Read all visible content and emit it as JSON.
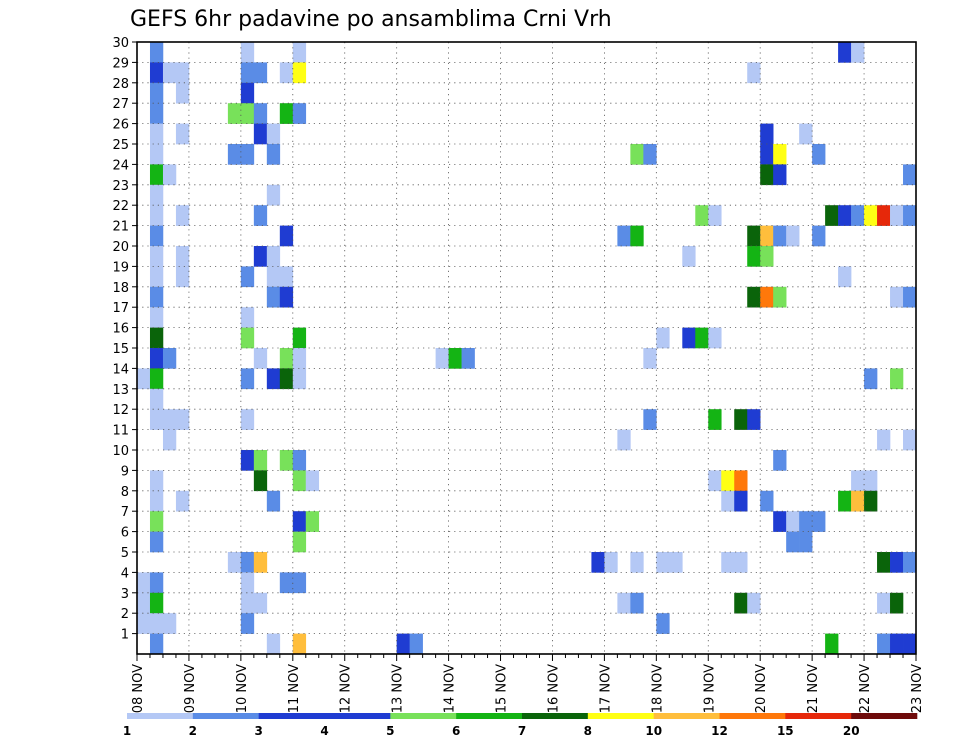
{
  "chart_data": {
    "type": "heatmap",
    "title": "GEFS 6hr padavine po ansamblima Crni Vrh",
    "xlabel": "",
    "ylabel": "",
    "x_tick_labels": [
      "08 NOV",
      "09 NOV",
      "10 NOV",
      "11 NOV",
      "12 NOV",
      "13 NOV",
      "14 NOV",
      "15 NOV",
      "16 NOV",
      "17 NOV",
      "18 NOV",
      "19 NOV",
      "20 NOV",
      "21 NOV",
      "22 NOV",
      "23 NOV"
    ],
    "y_tick_labels": [
      "1",
      "2",
      "3",
      "4",
      "5",
      "6",
      "7",
      "8",
      "9",
      "10",
      "11",
      "12",
      "13",
      "14",
      "15",
      "16",
      "17",
      "18",
      "19",
      "20",
      "21",
      "22",
      "23",
      "24",
      "25",
      "26",
      "27",
      "28",
      "29",
      "30"
    ],
    "xlim_steps": [
      0,
      60
    ],
    "ylim": [
      0,
      30
    ],
    "steps_per_day": 4,
    "members": 30,
    "grid": true,
    "legend": {
      "placement": "bottom",
      "levels": [
        "1",
        "2",
        "3",
        "4",
        "5",
        "6",
        "7",
        "8",
        "10",
        "12",
        "15",
        "20"
      ],
      "colors": [
        "#b4c8f5",
        "#5a8ce6",
        "#1f3cd2",
        "#1f3cd2",
        "#78e15a",
        "#14b414",
        "#0a640a",
        "#ffff14",
        "#ffbe3c",
        "#ff780a",
        "#e6280a",
        "#6e0a0a"
      ]
    },
    "color_scale": {
      "L1": "#b4c8f5",
      "L2": "#5a8ce6",
      "L3": "#1f3cd2",
      "L4": "#78e15a",
      "L5": "#14b414",
      "L6": "#0a640a",
      "L7": "#ffff14",
      "L8": "#ffbe3c",
      "L9": "#ff780a",
      "L10": "#e6280a"
    },
    "cells_format": "[step_index, member_row, level]",
    "cells": [
      [
        1,
        30,
        2
      ],
      [
        8,
        30,
        1
      ],
      [
        12,
        30,
        1
      ],
      [
        54,
        30,
        3
      ],
      [
        55,
        30,
        1
      ],
      [
        1,
        29,
        3
      ],
      [
        2,
        29,
        1
      ],
      [
        3,
        29,
        1
      ],
      [
        8,
        29,
        2
      ],
      [
        9,
        29,
        2
      ],
      [
        11,
        29,
        1
      ],
      [
        12,
        29,
        7
      ],
      [
        47,
        29,
        1
      ],
      [
        1,
        28,
        2
      ],
      [
        3,
        28,
        1
      ],
      [
        8,
        28,
        3
      ],
      [
        1,
        27,
        2
      ],
      [
        7,
        27,
        4
      ],
      [
        8,
        27,
        4
      ],
      [
        9,
        27,
        2
      ],
      [
        11,
        27,
        5
      ],
      [
        12,
        27,
        2
      ],
      [
        1,
        26,
        1
      ],
      [
        3,
        26,
        1
      ],
      [
        9,
        26,
        3
      ],
      [
        10,
        26,
        1
      ],
      [
        48,
        26,
        3
      ],
      [
        51,
        26,
        1
      ],
      [
        1,
        25,
        1
      ],
      [
        7,
        25,
        2
      ],
      [
        8,
        25,
        2
      ],
      [
        10,
        25,
        2
      ],
      [
        38,
        25,
        4
      ],
      [
        39,
        25,
        2
      ],
      [
        48,
        25,
        3
      ],
      [
        49,
        25,
        7
      ],
      [
        52,
        25,
        2
      ],
      [
        1,
        24,
        5
      ],
      [
        2,
        24,
        1
      ],
      [
        48,
        24,
        6
      ],
      [
        49,
        24,
        3
      ],
      [
        59,
        24,
        2
      ],
      [
        1,
        23,
        1
      ],
      [
        10,
        23,
        1
      ],
      [
        1,
        22,
        1
      ],
      [
        3,
        22,
        1
      ],
      [
        9,
        22,
        2
      ],
      [
        43,
        22,
        4
      ],
      [
        44,
        22,
        1
      ],
      [
        53,
        22,
        6
      ],
      [
        54,
        22,
        3
      ],
      [
        55,
        22,
        2
      ],
      [
        56,
        22,
        7
      ],
      [
        57,
        22,
        10
      ],
      [
        58,
        22,
        1
      ],
      [
        59,
        22,
        2
      ],
      [
        1,
        21,
        2
      ],
      [
        11,
        21,
        3
      ],
      [
        37,
        21,
        2
      ],
      [
        38,
        21,
        5
      ],
      [
        47,
        21,
        6
      ],
      [
        48,
        21,
        8
      ],
      [
        49,
        21,
        2
      ],
      [
        50,
        21,
        1
      ],
      [
        52,
        21,
        2
      ],
      [
        1,
        20,
        1
      ],
      [
        3,
        20,
        1
      ],
      [
        9,
        20,
        3
      ],
      [
        10,
        20,
        1
      ],
      [
        42,
        20,
        1
      ],
      [
        47,
        20,
        5
      ],
      [
        48,
        20,
        4
      ],
      [
        1,
        19,
        1
      ],
      [
        3,
        19,
        1
      ],
      [
        8,
        19,
        2
      ],
      [
        10,
        19,
        1
      ],
      [
        11,
        19,
        1
      ],
      [
        54,
        19,
        1
      ],
      [
        1,
        18,
        2
      ],
      [
        10,
        18,
        2
      ],
      [
        11,
        18,
        3
      ],
      [
        47,
        18,
        6
      ],
      [
        48,
        18,
        9
      ],
      [
        49,
        18,
        4
      ],
      [
        58,
        18,
        1
      ],
      [
        59,
        18,
        2
      ],
      [
        1,
        17,
        1
      ],
      [
        8,
        17,
        1
      ],
      [
        1,
        16,
        6
      ],
      [
        8,
        16,
        4
      ],
      [
        12,
        16,
        5
      ],
      [
        40,
        16,
        1
      ],
      [
        42,
        16,
        3
      ],
      [
        43,
        16,
        5
      ],
      [
        44,
        16,
        1
      ],
      [
        1,
        15,
        3
      ],
      [
        2,
        15,
        2
      ],
      [
        9,
        15,
        1
      ],
      [
        11,
        15,
        4
      ],
      [
        12,
        15,
        1
      ],
      [
        23,
        15,
        1
      ],
      [
        24,
        15,
        5
      ],
      [
        25,
        15,
        2
      ],
      [
        39,
        15,
        1
      ],
      [
        0,
        14,
        1
      ],
      [
        1,
        14,
        5
      ],
      [
        8,
        14,
        2
      ],
      [
        10,
        14,
        3
      ],
      [
        11,
        14,
        6
      ],
      [
        12,
        14,
        1
      ],
      [
        56,
        14,
        2
      ],
      [
        58,
        14,
        4
      ],
      [
        1,
        13,
        1
      ],
      [
        1,
        12,
        1
      ],
      [
        2,
        12,
        1
      ],
      [
        3,
        12,
        1
      ],
      [
        8,
        12,
        1
      ],
      [
        39,
        12,
        2
      ],
      [
        44,
        12,
        5
      ],
      [
        46,
        12,
        6
      ],
      [
        47,
        12,
        3
      ],
      [
        2,
        11,
        1
      ],
      [
        37,
        11,
        1
      ],
      [
        57,
        11,
        1
      ],
      [
        59,
        11,
        1
      ],
      [
        8,
        10,
        3
      ],
      [
        9,
        10,
        4
      ],
      [
        11,
        10,
        4
      ],
      [
        12,
        10,
        2
      ],
      [
        49,
        10,
        2
      ],
      [
        1,
        9,
        1
      ],
      [
        9,
        9,
        6
      ],
      [
        12,
        9,
        4
      ],
      [
        13,
        9,
        1
      ],
      [
        44,
        9,
        1
      ],
      [
        45,
        9,
        7
      ],
      [
        46,
        9,
        9
      ],
      [
        55,
        9,
        1
      ],
      [
        56,
        9,
        1
      ],
      [
        1,
        8,
        1
      ],
      [
        3,
        8,
        1
      ],
      [
        10,
        8,
        2
      ],
      [
        45,
        8,
        1
      ],
      [
        46,
        8,
        3
      ],
      [
        48,
        8,
        2
      ],
      [
        54,
        8,
        5
      ],
      [
        55,
        8,
        8
      ],
      [
        56,
        8,
        6
      ],
      [
        1,
        7,
        4
      ],
      [
        12,
        7,
        3
      ],
      [
        13,
        7,
        4
      ],
      [
        49,
        7,
        3
      ],
      [
        50,
        7,
        1
      ],
      [
        51,
        7,
        2
      ],
      [
        52,
        7,
        2
      ],
      [
        1,
        6,
        2
      ],
      [
        12,
        6,
        4
      ],
      [
        50,
        6,
        2
      ],
      [
        51,
        6,
        2
      ],
      [
        7,
        5,
        1
      ],
      [
        8,
        5,
        2
      ],
      [
        9,
        5,
        8
      ],
      [
        35,
        5,
        3
      ],
      [
        36,
        5,
        1
      ],
      [
        38,
        5,
        1
      ],
      [
        40,
        5,
        1
      ],
      [
        41,
        5,
        1
      ],
      [
        45,
        5,
        1
      ],
      [
        46,
        5,
        1
      ],
      [
        57,
        5,
        6
      ],
      [
        58,
        5,
        3
      ],
      [
        59,
        5,
        2
      ],
      [
        0,
        4,
        1
      ],
      [
        1,
        4,
        2
      ],
      [
        8,
        4,
        1
      ],
      [
        11,
        4,
        2
      ],
      [
        12,
        4,
        2
      ],
      [
        0,
        3,
        1
      ],
      [
        1,
        3,
        5
      ],
      [
        8,
        3,
        1
      ],
      [
        9,
        3,
        1
      ],
      [
        37,
        3,
        1
      ],
      [
        38,
        3,
        2
      ],
      [
        46,
        3,
        6
      ],
      [
        47,
        3,
        1
      ],
      [
        57,
        3,
        1
      ],
      [
        58,
        3,
        6
      ],
      [
        0,
        2,
        1
      ],
      [
        1,
        2,
        1
      ],
      [
        2,
        2,
        1
      ],
      [
        8,
        2,
        2
      ],
      [
        40,
        2,
        2
      ],
      [
        1,
        1,
        2
      ],
      [
        10,
        1,
        1
      ],
      [
        12,
        1,
        8
      ],
      [
        20,
        1,
        3
      ],
      [
        21,
        1,
        2
      ],
      [
        53,
        1,
        5
      ],
      [
        57,
        1,
        2
      ],
      [
        58,
        1,
        3
      ],
      [
        59,
        1,
        3
      ]
    ]
  }
}
